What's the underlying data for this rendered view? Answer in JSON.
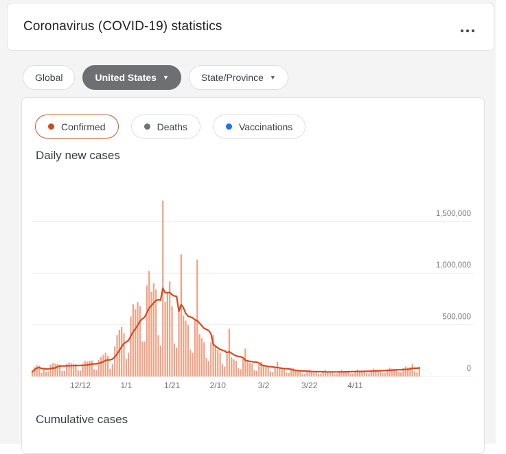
{
  "header": {
    "title": "Coronavirus (COVID-19) statistics",
    "menu_icon": "more-horizontal"
  },
  "filters": [
    {
      "label": "Global",
      "selected": false,
      "dropdown": false
    },
    {
      "label": "United States",
      "selected": true,
      "dropdown": true
    },
    {
      "label": "State/Province",
      "selected": false,
      "dropdown": true
    }
  ],
  "tabs": [
    {
      "label": "Confirmed",
      "dot_color": "#d2481a",
      "selected": true
    },
    {
      "label": "Deaths",
      "dot_color": "#6e7175",
      "selected": false
    },
    {
      "label": "Vaccinations",
      "dot_color": "#1a73e8",
      "selected": false
    }
  ],
  "sections": {
    "daily": "Daily new cases",
    "cumulative": "Cumulative cases"
  },
  "chart_data": {
    "type": "bar",
    "title": "Daily new cases",
    "series_note": "daily new confirmed COVID-19 cases, United States, with 7-day average trend line",
    "x_tick_labels": [
      "12/12",
      "1/1",
      "1/21",
      "2/10",
      "3/2",
      "3/22",
      "4/11"
    ],
    "x_tick_indices": [
      21,
      41,
      61,
      81,
      101,
      121,
      141
    ],
    "y_tick_labels": [
      "0",
      "500,000",
      "1,000,000",
      "1,500,000"
    ],
    "y_tick_values": [
      0,
      500000,
      1000000,
      1500000
    ],
    "ylim": [
      0,
      1790000
    ],
    "grid": true,
    "legend_position": "none",
    "bar_color": "#f0a184",
    "line_color": "#d8481b",
    "grid_color": "#ececee",
    "axis_label_color": "#757575",
    "values": [
      45000,
      90000,
      110000,
      105000,
      35000,
      80000,
      45000,
      50000,
      115000,
      130000,
      125000,
      120000,
      115000,
      55000,
      55000,
      120000,
      135000,
      130000,
      125000,
      120000,
      60000,
      58000,
      125000,
      150000,
      145000,
      150000,
      155000,
      70000,
      65000,
      160000,
      190000,
      210000,
      230000,
      200000,
      75000,
      120000,
      290000,
      400000,
      450000,
      480000,
      420000,
      170000,
      230000,
      580000,
      700000,
      650000,
      720000,
      680000,
      340000,
      340000,
      880000,
      1020000,
      820000,
      900000,
      840000,
      400000,
      300000,
      1700000,
      720000,
      810000,
      920000,
      680000,
      320000,
      280000,
      680000,
      1180000,
      590000,
      540000,
      500000,
      260000,
      230000,
      540000,
      1130000,
      410000,
      370000,
      330000,
      180000,
      150000,
      330000,
      400000,
      290000,
      260000,
      230000,
      120000,
      95000,
      220000,
      460000,
      185000,
      165000,
      150000,
      80000,
      70000,
      175000,
      270000,
      150000,
      135000,
      120000,
      65000,
      55000,
      120000,
      140000,
      110000,
      100000,
      90000,
      50000,
      42000,
      85000,
      140000,
      78000,
      72000,
      68000,
      38000,
      33000,
      65000,
      80000,
      60000,
      56000,
      52000,
      30000,
      28000,
      56000,
      66000,
      52000,
      50000,
      46000,
      27000,
      26000,
      52000,
      62000,
      50000,
      48000,
      46000,
      27000,
      26000,
      52000,
      64000,
      54000,
      52000,
      50000,
      29000,
      28000,
      56000,
      68000,
      58000,
      56000,
      54000,
      32000,
      30000,
      62000,
      76000,
      66000,
      64000,
      62000,
      36000,
      34000,
      70000,
      86000,
      76000,
      74000,
      72000,
      42000,
      38000,
      80000,
      96000,
      86000,
      90000,
      120000,
      50000,
      40000,
      95000
    ]
  }
}
